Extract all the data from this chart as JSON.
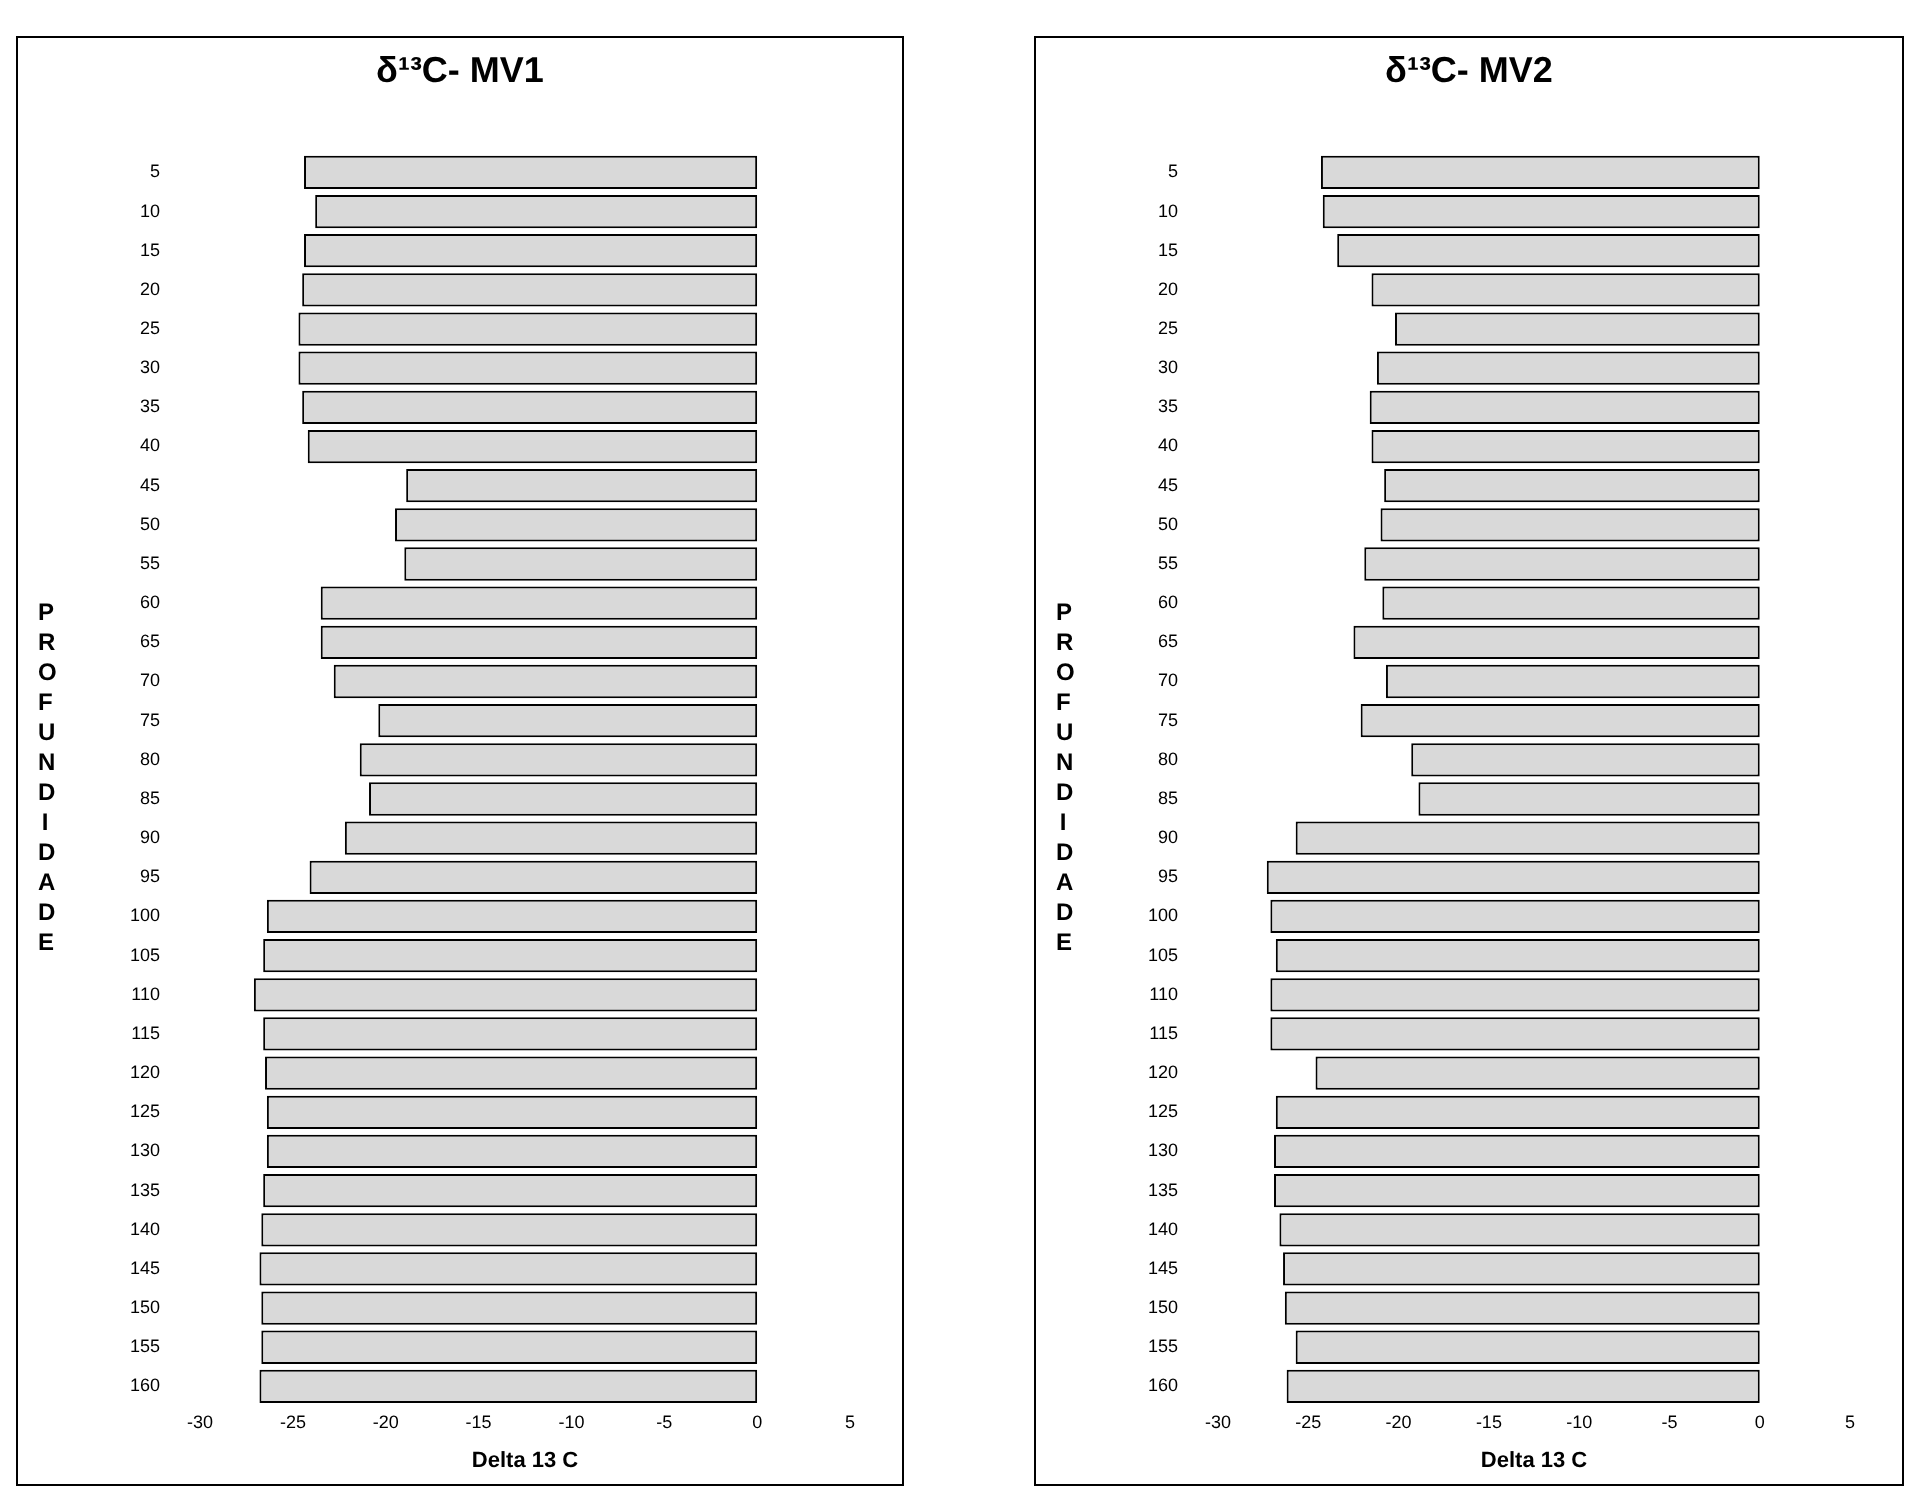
{
  "chart_data": [
    {
      "type": "bar",
      "orientation": "horizontal",
      "title": "δ¹³C- MV1",
      "xlabel": "Delta 13 C",
      "ylabel": "PROFUNDIDADE",
      "categories": [
        "5",
        "10",
        "15",
        "20",
        "25",
        "30",
        "35",
        "40",
        "45",
        "50",
        "55",
        "60",
        "65",
        "70",
        "75",
        "80",
        "85",
        "90",
        "95",
        "100",
        "105",
        "110",
        "115",
        "120",
        "125",
        "130",
        "135",
        "140",
        "145",
        "150",
        "155",
        "160"
      ],
      "values": [
        -24.4,
        -23.8,
        -24.4,
        -24.5,
        -24.7,
        -24.7,
        -24.5,
        -24.2,
        -18.9,
        -19.5,
        -19.0,
        -23.5,
        -23.5,
        -22.8,
        -20.4,
        -21.4,
        -20.9,
        -22.2,
        -24.1,
        -26.4,
        -26.6,
        -27.1,
        -26.6,
        -26.5,
        -26.4,
        -26.4,
        -26.6,
        -26.7,
        -26.8,
        -26.7,
        -26.7,
        -26.8
      ],
      "color": "#d9d9d9",
      "xlim": [
        -30,
        5
      ],
      "xticks": [
        -30,
        -25,
        -20,
        -15,
        -10,
        -5,
        0,
        5
      ],
      "grid": false,
      "legend": false
    },
    {
      "type": "bar",
      "orientation": "horizontal",
      "title": "δ¹³C- MV2",
      "xlabel": "Delta 13 C",
      "ylabel": "PROFUNDIDADE",
      "categories": [
        "5",
        "10",
        "15",
        "20",
        "25",
        "30",
        "35",
        "40",
        "45",
        "50",
        "55",
        "60",
        "65",
        "70",
        "75",
        "80",
        "85",
        "90",
        "95",
        "100",
        "105",
        "110",
        "115",
        "120",
        "125",
        "130",
        "135",
        "140",
        "145",
        "150",
        "155",
        "160"
      ],
      "values": [
        -24.3,
        -24.2,
        -23.4,
        -21.5,
        -20.2,
        -21.2,
        -21.6,
        -21.5,
        -20.8,
        -21.0,
        -21.9,
        -20.9,
        -22.5,
        -20.7,
        -22.1,
        -19.3,
        -18.9,
        -25.7,
        -27.3,
        -27.1,
        -26.8,
        -27.1,
        -27.1,
        -24.6,
        -26.8,
        -26.9,
        -26.9,
        -26.6,
        -26.4,
        -26.3,
        -25.7,
        -26.2
      ],
      "color": "#d9d9d9",
      "xlim": [
        -30,
        5
      ],
      "xticks": [
        -30,
        -25,
        -20,
        -15,
        -10,
        -5,
        0,
        5
      ],
      "grid": false,
      "legend": false
    }
  ]
}
